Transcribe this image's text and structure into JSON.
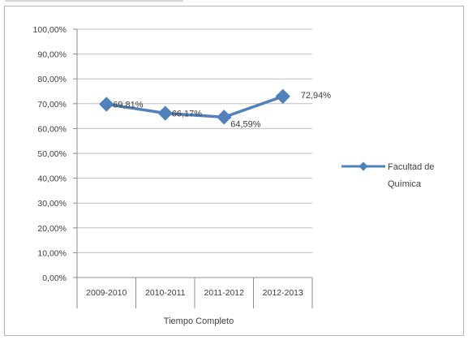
{
  "chart_data": {
    "type": "line",
    "categories": [
      "2009-2010",
      "2010-2011",
      "2011-2012",
      "2012-2013"
    ],
    "series": [
      {
        "name": "Facultad de Química",
        "values": [
          69.81,
          66.17,
          64.59,
          72.94
        ],
        "data_labels": [
          "69,81%",
          "66,17%",
          "64,59%",
          "72,94%"
        ],
        "color": "#4f81bd"
      }
    ],
    "xlabel": "Tiempo Completo",
    "ylabel": "",
    "ylim": [
      0,
      100
    ],
    "ytick_values": [
      0,
      10,
      20,
      30,
      40,
      50,
      60,
      70,
      80,
      90,
      100
    ],
    "ytick_labels": [
      "0,00%",
      "10,00%",
      "20,00%",
      "30,00%",
      "40,00%",
      "50,00%",
      "60,00%",
      "70,00%",
      "80,00%",
      "90,00%",
      "100,00%"
    ],
    "grid": true,
    "legend_position": "right"
  },
  "legend": {
    "line1": "Facultad de",
    "line2": "Química"
  },
  "colors": {
    "series": "#4f81bd",
    "grid": "#bfbfbf",
    "axis": "#8c8c8c",
    "text": "#404040"
  }
}
